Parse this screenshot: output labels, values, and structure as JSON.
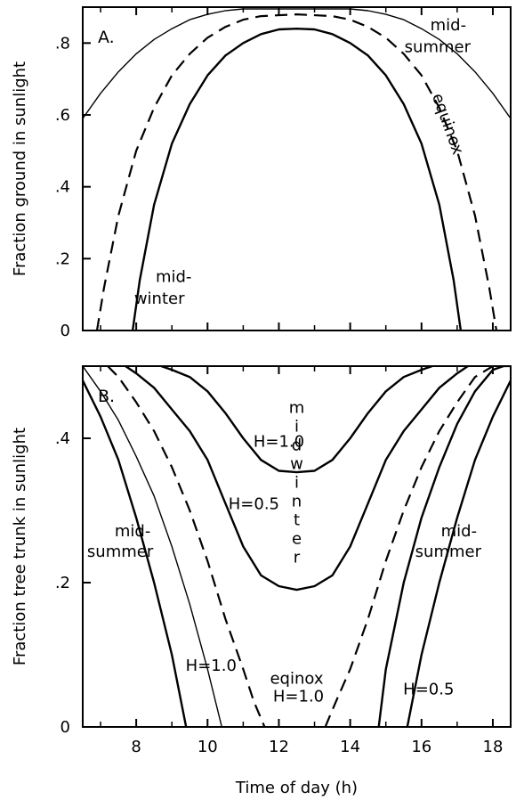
{
  "chart_data": [
    {
      "panel_label": "A.",
      "type": "line",
      "ylabel": "Fraction ground in sunlight",
      "xlim": [
        6.5,
        18.5
      ],
      "ylim": [
        0,
        0.9
      ],
      "yticks": [
        0,
        0.2,
        0.4,
        0.6,
        0.8
      ],
      "ytick_labels": [
        "0",
        ".2",
        ".4",
        ".6",
        ".8"
      ],
      "grid": false,
      "series": [
        {
          "name": "mid-summer",
          "style": "thin-solid",
          "x": [
            6.5,
            7,
            7.5,
            8,
            8.5,
            9,
            9.5,
            10,
            10.5,
            11,
            12.5,
            14,
            14.5,
            15,
            15.5,
            16,
            16.5,
            17,
            17.5,
            18,
            18.5
          ],
          "y": [
            0.59,
            0.66,
            0.72,
            0.77,
            0.81,
            0.84,
            0.865,
            0.88,
            0.89,
            0.895,
            0.895,
            0.895,
            0.89,
            0.88,
            0.865,
            0.84,
            0.81,
            0.77,
            0.72,
            0.66,
            0.59
          ]
        },
        {
          "name": "equinox",
          "style": "dashed",
          "x": [
            6.9,
            7.1,
            7.5,
            8,
            8.5,
            9,
            9.5,
            10,
            10.5,
            11,
            11.5,
            12.5,
            13.5,
            14,
            14.5,
            15,
            15.5,
            16,
            16.5,
            17,
            17.5,
            17.9,
            18.1
          ],
          "y": [
            0,
            0.12,
            0.32,
            0.5,
            0.62,
            0.71,
            0.77,
            0.815,
            0.845,
            0.865,
            0.875,
            0.88,
            0.875,
            0.865,
            0.845,
            0.815,
            0.77,
            0.71,
            0.62,
            0.5,
            0.32,
            0.12,
            0
          ]
        },
        {
          "name": "mid-winter",
          "style": "solid",
          "x": [
            7.9,
            8.1,
            8.5,
            9,
            9.5,
            10,
            10.5,
            11,
            11.5,
            12,
            12.5,
            13,
            13.5,
            14,
            14.5,
            15,
            15.5,
            16,
            16.5,
            16.9,
            17.1
          ],
          "y": [
            0,
            0.14,
            0.35,
            0.52,
            0.63,
            0.71,
            0.765,
            0.8,
            0.825,
            0.838,
            0.84,
            0.838,
            0.825,
            0.8,
            0.765,
            0.71,
            0.63,
            0.52,
            0.35,
            0.14,
            0
          ]
        }
      ],
      "annotations": [
        {
          "text": "mid-",
          "x": 16.75,
          "y": 0.835
        },
        {
          "text": "summer",
          "x": 16.45,
          "y": 0.775
        },
        {
          "text": "equinox",
          "x": 16.6,
          "y": 0.57,
          "rotate": 70
        },
        {
          "text": "mid-",
          "x": 9.05,
          "y": 0.135
        },
        {
          "text": "winter",
          "x": 8.65,
          "y": 0.075
        }
      ]
    },
    {
      "panel_label": "B.",
      "type": "line",
      "ylabel": "Fraction tree trunk in sunlight",
      "xlabel": "Time of day (h)",
      "xlim": [
        6.5,
        18.5
      ],
      "ylim": [
        0,
        0.5
      ],
      "xticks": [
        8,
        10,
        12,
        14,
        16,
        18
      ],
      "xtick_labels": [
        "8",
        "10",
        "12",
        "14",
        "16",
        "18"
      ],
      "yticks": [
        0,
        0.2,
        0.4
      ],
      "ytick_labels": [
        "0",
        ".2",
        ".4"
      ],
      "grid": false,
      "series": [
        {
          "name": "mid-summer",
          "style": "solid",
          "x": [
            6.5,
            7,
            7.5,
            8,
            8.5,
            9,
            9.4
          ],
          "y": [
            0.48,
            0.43,
            0.37,
            0.29,
            0.2,
            0.1,
            0
          ]
        },
        {
          "name": "mid-summer",
          "style": "solid",
          "x": [
            15.6,
            16,
            16.5,
            17,
            17.5,
            18,
            18.5
          ],
          "y": [
            0,
            0.1,
            0.2,
            0.29,
            0.37,
            0.43,
            0.48
          ]
        },
        {
          "name": "H=1.0 mid-summer",
          "style": "thin-solid",
          "x": [
            6.5,
            7,
            7.5,
            8,
            8.5,
            9,
            9.5,
            10,
            10.4
          ],
          "y": [
            0.5,
            0.465,
            0.425,
            0.375,
            0.32,
            0.25,
            0.17,
            0.08,
            0
          ]
        },
        {
          "name": "H=0.5",
          "style": "solid",
          "x": [
            14.8,
            15,
            15.5,
            16,
            16.5,
            17,
            17.5,
            18,
            18.3
          ],
          "y": [
            0,
            0.08,
            0.2,
            0.29,
            0.36,
            0.42,
            0.465,
            0.495,
            0.5
          ]
        },
        {
          "name": "equinox H=1.0",
          "style": "dashed",
          "x": [
            7.2,
            7.5,
            8,
            8.5,
            9,
            9.5,
            10,
            10.5,
            11,
            11.3,
            11.6
          ],
          "y": [
            0.5,
            0.485,
            0.45,
            0.41,
            0.36,
            0.3,
            0.23,
            0.15,
            0.08,
            0.035,
            0
          ]
        },
        {
          "name": "equinox H=1.0",
          "style": "dashed",
          "x": [
            13.3,
            13.6,
            14,
            14.5,
            15,
            15.5,
            16,
            16.5,
            17,
            17.5,
            18,
            18.5
          ],
          "y": [
            0,
            0.035,
            0.08,
            0.15,
            0.23,
            0.3,
            0.36,
            0.41,
            0.45,
            0.485,
            0.5,
            0.5
          ]
        },
        {
          "name": "H=0.5 mid-winter",
          "style": "solid",
          "x": [
            7.7,
            8,
            8.5,
            9,
            9.5,
            10,
            10.5,
            11,
            11.5,
            12,
            12.5,
            13,
            13.5,
            14,
            14.5,
            15,
            15.5,
            16,
            16.5,
            17,
            17.3
          ],
          "y": [
            0.5,
            0.49,
            0.47,
            0.44,
            0.41,
            0.37,
            0.31,
            0.25,
            0.21,
            0.195,
            0.19,
            0.195,
            0.21,
            0.25,
            0.31,
            0.37,
            0.41,
            0.44,
            0.47,
            0.49,
            0.5
          ]
        },
        {
          "name": "H=1.0 mid-winter",
          "style": "solid",
          "x": [
            8.7,
            9,
            9.5,
            10,
            10.5,
            11,
            11.5,
            12,
            12.5,
            13,
            13.5,
            14,
            14.5,
            15,
            15.5,
            16,
            16.3
          ],
          "y": [
            0.5,
            0.495,
            0.485,
            0.465,
            0.435,
            0.4,
            0.37,
            0.355,
            0.353,
            0.355,
            0.37,
            0.4,
            0.435,
            0.465,
            0.485,
            0.495,
            0.5
          ]
        }
      ],
      "annotations": [
        {
          "text": "H=1.0",
          "x": 12.0,
          "y": 0.388
        },
        {
          "text": "H=0.5",
          "x": 11.3,
          "y": 0.302
        },
        {
          "text": "midwinter",
          "x": 12.5,
          "y": 0.33,
          "vertical": true
        },
        {
          "text": "mid-",
          "x": 7.9,
          "y": 0.264
        },
        {
          "text": "summer",
          "x": 7.55,
          "y": 0.236
        },
        {
          "text": "mid-",
          "x": 17.05,
          "y": 0.264
        },
        {
          "text": "summer",
          "x": 16.75,
          "y": 0.236
        },
        {
          "text": "H=1.0",
          "x": 10.1,
          "y": 0.078
        },
        {
          "text": "eqinox",
          "x": 12.5,
          "y": 0.06
        },
        {
          "text": "H=1.0",
          "x": 12.55,
          "y": 0.035
        },
        {
          "text": "H=0.5",
          "x": 16.2,
          "y": 0.045
        }
      ]
    }
  ]
}
